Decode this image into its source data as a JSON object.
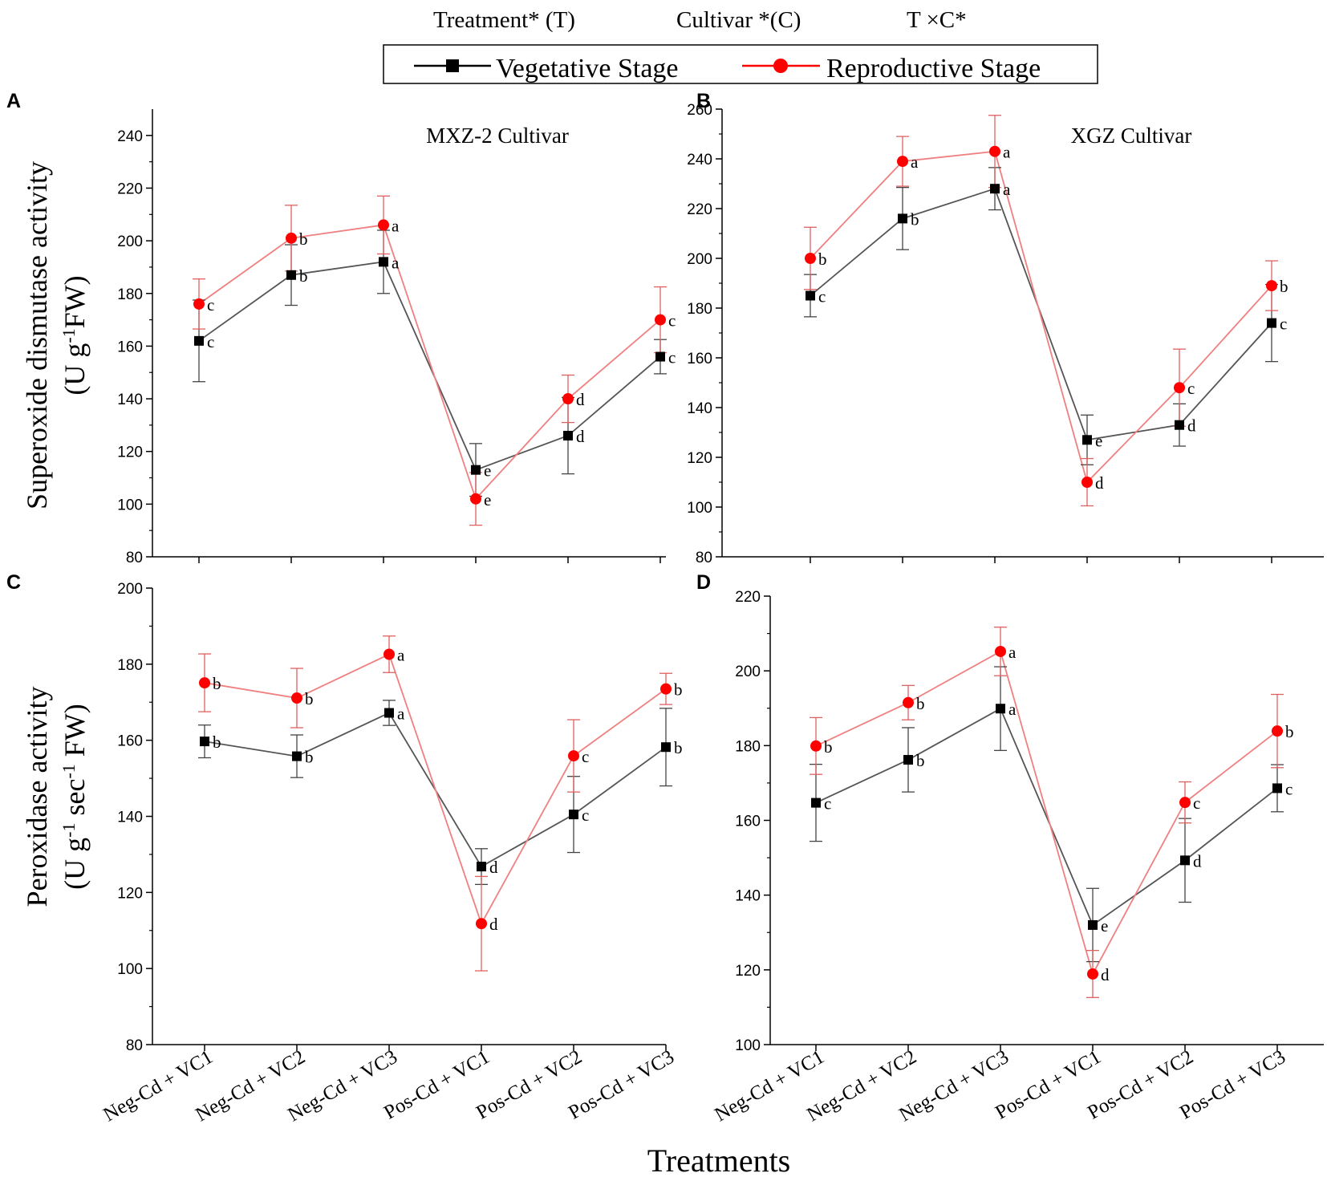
{
  "header": {
    "stats": [
      "Treatment* (T)",
      "Cultivar *(C)",
      "T ×C*"
    ]
  },
  "legend": {
    "vegetative": "Vegetative Stage",
    "reproductive": "Reproductive Stage"
  },
  "colors": {
    "vegetative": "#000000",
    "reproductive": "#ff0000",
    "vegetative_line": "#555555",
    "reproductive_line": "#f08080"
  },
  "ylabels": {
    "sod": [
      "Superoxide dismutase activity",
      "(U g",
      "-1",
      "FW)"
    ],
    "pod": [
      "Peroxidase activity",
      "(U g",
      "-1",
      " sec",
      "-1",
      " FW)"
    ]
  },
  "xlabel": "Treatments",
  "chart_data": [
    {
      "panel": "A",
      "type": "line",
      "title": "MXZ-2 Cultivar",
      "categories": [
        "Neg-Cd + VC1",
        "Neg-Cd + VC2",
        "Neg-Cd + VC3",
        "Pos-Cd + VC1",
        "Pos-Cd + VC2",
        "Pos-Cd + VC3"
      ],
      "ylim": [
        80,
        250
      ],
      "yticks": [
        80,
        100,
        120,
        140,
        160,
        180,
        200,
        220,
        240
      ],
      "series": [
        {
          "name": "Vegetative Stage",
          "values": [
            162,
            187,
            192,
            113,
            126,
            156
          ],
          "errors": [
            15.5,
            11.5,
            12,
            10,
            14.5,
            6.5
          ],
          "labels": [
            "c",
            "b",
            "a",
            "e",
            "d",
            "c"
          ]
        },
        {
          "name": "Reproductive Stage",
          "values": [
            176,
            201,
            206,
            102,
            140,
            170
          ],
          "errors": [
            9.5,
            12.5,
            11,
            10,
            9,
            12.5
          ],
          "labels": [
            "c",
            "b",
            "a",
            "e",
            "d",
            "c"
          ]
        }
      ]
    },
    {
      "panel": "B",
      "type": "line",
      "title": "XGZ Cultivar",
      "categories": [
        "Neg-Cd + VC1",
        "Neg-Cd + VC2",
        "Neg-Cd + VC3",
        "Pos-Cd + VC1",
        "Pos-Cd + VC2",
        "Pos-Cd + VC3"
      ],
      "ylim": [
        80,
        260
      ],
      "yticks": [
        80,
        100,
        120,
        140,
        160,
        180,
        200,
        220,
        240,
        260
      ],
      "series": [
        {
          "name": "Vegetative Stage",
          "values": [
            185,
            216,
            228,
            127,
            133,
            174
          ],
          "errors": [
            8.5,
            12.5,
            8.5,
            10,
            8.5,
            15.5
          ],
          "labels": [
            "c",
            "b",
            "a",
            "e",
            "d",
            "c"
          ]
        },
        {
          "name": "Reproductive Stage",
          "values": [
            200,
            239,
            243,
            110,
            148,
            189
          ],
          "errors": [
            12.5,
            10,
            14.5,
            9.5,
            15.5,
            10
          ],
          "labels": [
            "b",
            "a",
            "a",
            "d",
            "c",
            "b"
          ]
        }
      ]
    },
    {
      "panel": "C",
      "type": "line",
      "title": "",
      "categories": [
        "Neg-Cd + VC1",
        "Neg-Cd + VC2",
        "Neg-Cd + VC3",
        "Pos-Cd + VC1",
        "Pos-Cd + VC2",
        "Pos-Cd + VC3"
      ],
      "ylim": [
        80,
        200
      ],
      "yticks": [
        80,
        100,
        120,
        140,
        160,
        180,
        200
      ],
      "series": [
        {
          "name": "Vegetative Stage",
          "values": [
            159.7,
            155.8,
            167.2,
            126.8,
            140.5,
            158.2
          ],
          "errors": [
            4.3,
            5.6,
            3.3,
            4.7,
            10,
            10.2
          ],
          "labels": [
            "b",
            "b",
            "a",
            "d",
            "c",
            "b"
          ]
        },
        {
          "name": "Reproductive Stage",
          "values": [
            175.1,
            171.1,
            182.6,
            111.8,
            155.9,
            173.5
          ],
          "errors": [
            7.6,
            7.8,
            4.8,
            12.4,
            9.5,
            4.1
          ],
          "labels": [
            "b",
            "b",
            "a",
            "d",
            "c",
            "b"
          ]
        }
      ]
    },
    {
      "panel": "D",
      "type": "line",
      "title": "",
      "categories": [
        "Neg-Cd + VC1",
        "Neg-Cd + VC2",
        "Neg-Cd + VC3",
        "Pos-Cd + VC1",
        "Pos-Cd + VC2",
        "Pos-Cd + VC3"
      ],
      "ylim": [
        100,
        220
      ],
      "yticks": [
        100,
        120,
        140,
        160,
        180,
        200,
        220
      ],
      "series": [
        {
          "name": "Vegetative Stage",
          "values": [
            164.7,
            176.2,
            189.9,
            132,
            149.3,
            168.6
          ],
          "errors": [
            10.3,
            8.6,
            11.2,
            9.8,
            11.2,
            6.3
          ],
          "labels": [
            "c",
            "b",
            "a",
            "e",
            "d",
            "c"
          ]
        },
        {
          "name": "Reproductive Stage",
          "values": [
            179.9,
            191.5,
            205.2,
            118.9,
            164.8,
            183.9
          ],
          "errors": [
            7.6,
            4.6,
            6.5,
            6.3,
            5.5,
            9.8
          ],
          "labels": [
            "b",
            "b",
            "a",
            "d",
            "c",
            "b"
          ]
        }
      ]
    }
  ]
}
